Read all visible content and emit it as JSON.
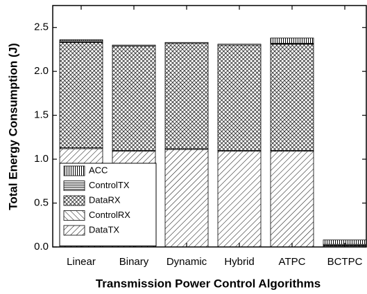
{
  "chart_data": {
    "type": "stacked_bar",
    "xlabel": "Transmission Power Control Algorithms",
    "ylabel": "Total Energy Consumption (J)",
    "categories": [
      "Linear",
      "Binary",
      "Dynamic",
      "Hybrid",
      "ATPC",
      "BCTPC"
    ],
    "series": [
      {
        "name": "DataTX",
        "color": "#000000",
        "pattern": "slash",
        "values": [
          1.12,
          1.09,
          1.11,
          1.09,
          1.09,
          0.01
        ]
      },
      {
        "name": "ControlRX",
        "color": "#000000",
        "pattern": "backslash",
        "values": [
          0.01,
          0.01,
          0.01,
          0.01,
          0.01,
          0.0
        ]
      },
      {
        "name": "DataRX",
        "color": "#000000",
        "pattern": "crosshatch",
        "values": [
          1.2,
          1.19,
          1.2,
          1.2,
          1.21,
          0.01
        ]
      },
      {
        "name": "ControlTX",
        "color": "#000000",
        "pattern": "horizontal",
        "values": [
          0.02,
          0.01,
          0.01,
          0.01,
          0.01,
          0.01
        ]
      },
      {
        "name": "ACC",
        "color": "#000000",
        "pattern": "vertical",
        "values": [
          0.01,
          0.0,
          0.0,
          0.0,
          0.06,
          0.05
        ]
      }
    ],
    "ylim": [
      0,
      2.75
    ],
    "yticks": [
      {
        "value": 0,
        "label": "0.0"
      },
      0.5,
      {
        "value": 1,
        "label": "1.0"
      },
      1.5,
      {
        "value": 2,
        "label": "2.0"
      },
      2.5
    ],
    "legend": "lower left"
  }
}
